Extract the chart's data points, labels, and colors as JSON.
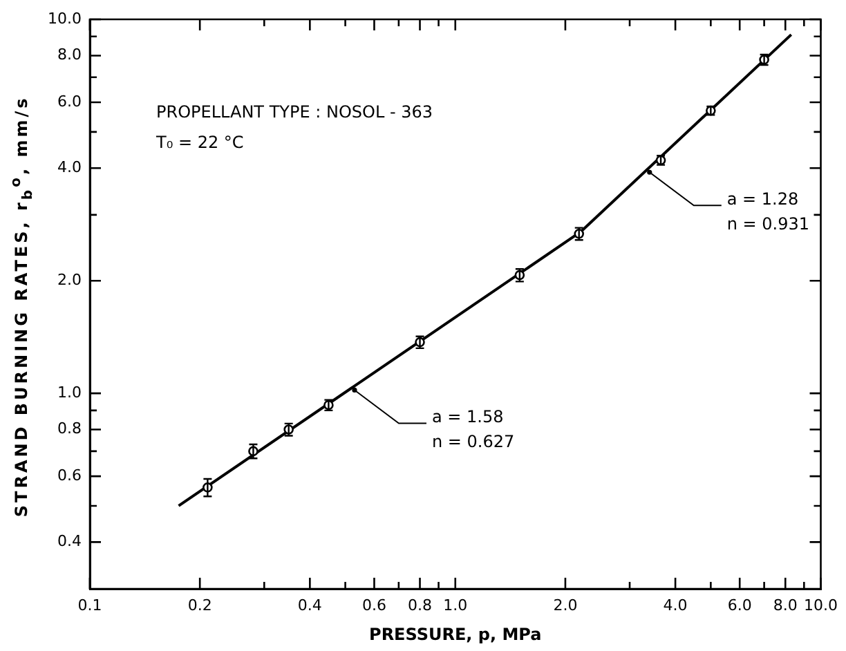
{
  "chart_data": {
    "type": "scatter",
    "xlabel": "PRESSURE, p, MPa",
    "ylabel": "STRAND BURNING RATES, r$_{b}$$^{o}$, mm/s",
    "annotations": [
      "PROPELLANT TYPE : NOSOL - 363",
      "T₀ = 22 °C",
      {
        "text": "a = 1.28\nn = 0.931",
        "x": 3.4,
        "y": 3.9
      },
      {
        "text": "a = 1.58\nn = 0.627",
        "x": 0.53,
        "y": 1.02
      }
    ],
    "series": [
      {
        "color": "#000000",
        "marker": "circle",
        "x": [
          0.21,
          0.28,
          0.35,
          0.45,
          0.8,
          1.5,
          2.18,
          3.65,
          5.0,
          7.0
        ],
        "values": [
          0.56,
          0.7,
          0.8,
          0.93,
          1.37,
          2.07,
          2.67,
          4.2,
          5.7,
          7.8
        ],
        "errors": [
          0.03,
          0.03,
          0.03,
          0.03,
          0.05,
          0.08,
          0.1,
          0.12,
          0.15,
          0.25
        ]
      },
      {
        "type": "line",
        "color": "#000000",
        "marker": "none",
        "x": [
          0.175,
          2.2
        ],
        "values": [
          0.5,
          2.7
        ]
      },
      {
        "type": "line",
        "color": "#000000",
        "marker": "none",
        "x": [
          2.2,
          8.3
        ],
        "values": [
          2.7,
          9.1
        ]
      }
    ],
    "log": "xy",
    "grid": false,
    "legend": false,
    "xlim": [
      0.1,
      10
    ],
    "ylim": [
      0.3,
      10
    ],
    "xticks": [
      0.1,
      0.2,
      {
        "value": 0.3,
        "label": null
      },
      0.4,
      {
        "value": 0.5,
        "label": null
      },
      0.6,
      {
        "value": 0.7,
        "label": null
      },
      0.8,
      {
        "value": 0.9,
        "label": null
      },
      {
        "value": 1,
        "label": "1.0"
      },
      {
        "value": 2,
        "label": "2.0"
      },
      {
        "value": 3,
        "label": null
      },
      {
        "value": 4,
        "label": "4.0"
      },
      {
        "value": 5,
        "label": null
      },
      {
        "value": 6,
        "label": "6.0"
      },
      {
        "value": 7,
        "label": null
      },
      {
        "value": 8,
        "label": "8.0"
      },
      {
        "value": 9,
        "label": null
      },
      {
        "value": 10,
        "label": "10.0"
      }
    ],
    "yticks": [
      0.4,
      {
        "value": 0.5,
        "label": null
      },
      0.6,
      {
        "value": 0.7,
        "label": null
      },
      0.8,
      {
        "value": 0.9,
        "label": null
      },
      {
        "value": 1,
        "label": "1.0"
      },
      {
        "value": 2,
        "label": "2.0"
      },
      {
        "value": 3,
        "label": null
      },
      {
        "value": 4,
        "label": "4.0"
      },
      {
        "value": 5,
        "label": null
      },
      {
        "value": 6,
        "label": "6.0"
      },
      {
        "value": 7,
        "label": null
      },
      {
        "value": 8,
        "label": "8.0"
      },
      {
        "value": 9,
        "label": null
      },
      {
        "value": 10,
        "label": "10.0"
      }
    ]
  }
}
